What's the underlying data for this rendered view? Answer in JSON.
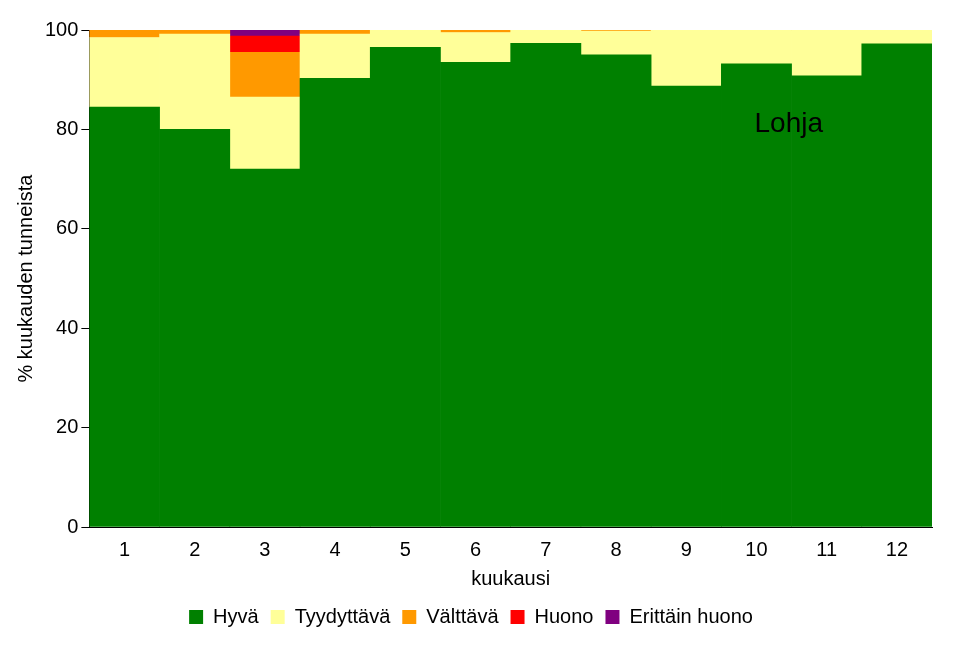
{
  "chart_data": {
    "type": "bar",
    "stacked": true,
    "annotation": "Lohja",
    "x_label": "kuukausi",
    "y_label": "% kuukauden tunneista",
    "categories": [
      "1",
      "2",
      "3",
      "4",
      "5",
      "6",
      "7",
      "8",
      "9",
      "10",
      "11",
      "12"
    ],
    "series": [
      {
        "name": "Hyvä",
        "color": "#008000",
        "values": [
          84.5,
          80,
          72,
          90.3,
          96.5,
          93.5,
          97.3,
          95,
          88.7,
          93.2,
          90.8,
          97.2
        ]
      },
      {
        "name": "Tyydyttävä",
        "color": "#ffff99",
        "values": [
          14,
          19.2,
          14.5,
          8.9,
          3.5,
          6,
          2.7,
          4.8,
          11.3,
          6.8,
          9.2,
          2.8
        ]
      },
      {
        "name": "Välttävä",
        "color": "#ff9900",
        "values": [
          1.5,
          0.8,
          9,
          0.8,
          0,
          0.5,
          0,
          0.2,
          0,
          0,
          0,
          0
        ]
      },
      {
        "name": "Huono",
        "color": "#ff0000",
        "values": [
          0,
          0,
          3.3,
          0,
          0,
          0,
          0,
          0,
          0,
          0,
          0,
          0
        ]
      },
      {
        "name": "Erittäin huono",
        "color": "#800080",
        "values": [
          0,
          0,
          1.2,
          0,
          0,
          0,
          0,
          0,
          0,
          0,
          0,
          0
        ]
      }
    ],
    "ylim": [
      0,
      100
    ],
    "yticks": [
      0,
      20,
      40,
      60,
      80,
      100
    ],
    "grid": false,
    "legend": "bottom"
  }
}
